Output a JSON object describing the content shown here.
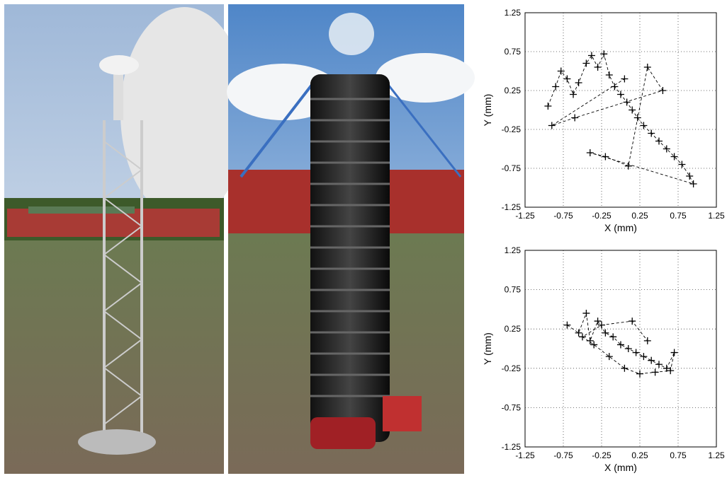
{
  "chart_data": [
    {
      "type": "scatter",
      "xlabel": "X (mm)",
      "ylabel": "Y (mm)",
      "marker": "+",
      "color": "#000000",
      "grid": true,
      "x": [
        -0.95,
        -0.85,
        -0.78,
        -0.7,
        -0.62,
        -0.55,
        -0.45,
        -0.38,
        -0.3,
        -0.22,
        -0.15,
        -0.08,
        0,
        0.08,
        0.15,
        0.22,
        0.3,
        0.4,
        0.5,
        0.6,
        0.7,
        0.8,
        0.9,
        0.95,
        -0.4,
        -0.2,
        0.1,
        0.35,
        0.55,
        -0.6,
        -0.9,
        0.05
      ],
      "values": [
        0.05,
        0.3,
        0.5,
        0.4,
        0.2,
        0.35,
        0.6,
        0.7,
        0.55,
        0.72,
        0.45,
        0.3,
        0.2,
        0.1,
        0,
        -0.1,
        -0.2,
        -0.3,
        -0.4,
        -0.5,
        -0.6,
        -0.7,
        -0.85,
        -0.95,
        -0.55,
        -0.6,
        -0.72,
        0.55,
        0.25,
        -0.1,
        -0.2,
        0.4
      ],
      "xlim": [
        -1.25,
        1.25
      ],
      "ylim": [
        -1.25,
        1.25
      ],
      "xticks": [
        -1.25,
        -0.75,
        -0.25,
        0.25,
        0.75,
        1.25
      ],
      "yticks": [
        -1.25,
        -0.75,
        -0.25,
        0.25,
        0.75,
        1.25
      ]
    },
    {
      "type": "scatter",
      "xlabel": "X (mm)",
      "ylabel": "Y (mm)",
      "marker": "+",
      "color": "#000000",
      "grid": true,
      "x": [
        -0.7,
        -0.55,
        -0.45,
        -0.4,
        -0.3,
        -0.2,
        -0.1,
        0,
        0.1,
        0.2,
        0.3,
        0.4,
        0.5,
        0.6,
        0.7,
        0.65,
        0.45,
        0.25,
        0.05,
        -0.15,
        -0.35,
        -0.5,
        -0.25,
        0.15,
        0.35
      ],
      "values": [
        0.3,
        0.2,
        0.45,
        0.1,
        0.35,
        0.2,
        0.15,
        0.05,
        0,
        -0.05,
        -0.1,
        -0.15,
        -0.2,
        -0.25,
        -0.05,
        -0.28,
        -0.3,
        -0.32,
        -0.25,
        -0.1,
        0.05,
        0.15,
        0.3,
        0.35,
        0.1
      ],
      "xlim": [
        -1.25,
        1.25
      ],
      "ylim": [
        -1.25,
        1.25
      ],
      "xticks": [
        -1.25,
        -0.75,
        -0.25,
        0.25,
        0.75,
        1.25
      ],
      "yticks": [
        -1.25,
        -0.75,
        -0.25,
        0.25,
        0.75,
        1.25
      ]
    }
  ]
}
